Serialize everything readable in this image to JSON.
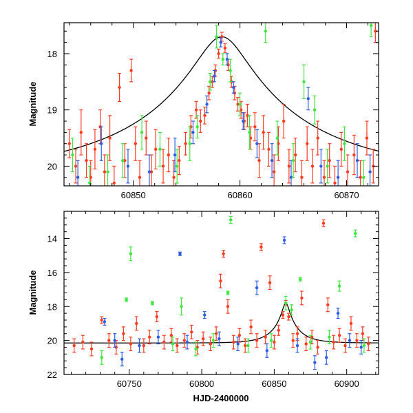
{
  "chart_data": [
    {
      "type": "scatter",
      "panel": "top",
      "xlabel": "",
      "ylabel": "Magnitude",
      "xlim": [
        60843.5,
        60873
      ],
      "ylim": [
        20.35,
        17.45
      ],
      "y_inverted": true,
      "xticks": [
        60850,
        60860,
        60870
      ],
      "yticks": [
        18,
        19,
        20
      ],
      "grid": false,
      "series": [
        {
          "color": "#ff3b1f",
          "points": [
            [
              60844.0,
              19.6,
              0.25
            ],
            [
              60844.6,
              20.0,
              0.3
            ],
            [
              60845.1,
              19.4,
              0.4
            ],
            [
              60845.6,
              19.9,
              0.3
            ],
            [
              60846.0,
              20.2,
              0.3
            ],
            [
              60846.4,
              19.7,
              0.35
            ],
            [
              60846.9,
              19.3,
              0.3
            ],
            [
              60847.3,
              20.1,
              0.3
            ],
            [
              60847.8,
              19.5,
              0.4
            ],
            [
              60848.2,
              20.3,
              0.3
            ],
            [
              60848.7,
              18.6,
              0.25
            ],
            [
              60849.2,
              19.9,
              0.3
            ],
            [
              60849.8,
              18.3,
              0.2
            ],
            [
              60850.2,
              19.6,
              0.3
            ],
            [
              60850.6,
              20.2,
              0.3
            ],
            [
              60851.2,
              19.5,
              0.3
            ],
            [
              60851.7,
              20.1,
              0.3
            ],
            [
              60852.1,
              19.7,
              0.35
            ],
            [
              60852.8,
              20.0,
              0.3
            ],
            [
              60853.3,
              19.8,
              0.3
            ],
            [
              60853.8,
              20.2,
              0.3
            ],
            [
              60854.3,
              19.9,
              0.25
            ],
            [
              60854.9,
              19.6,
              0.2
            ],
            [
              60855.4,
              19.3,
              0.2
            ],
            [
              60855.9,
              19.0,
              0.15
            ],
            [
              60856.3,
              19.2,
              0.2
            ],
            [
              60856.7,
              19.1,
              0.15
            ],
            [
              60857.1,
              18.7,
              0.12
            ],
            [
              60857.4,
              18.5,
              0.1
            ],
            [
              60857.7,
              18.3,
              0.1
            ],
            [
              60858.0,
              18.0,
              0.08
            ],
            [
              60858.3,
              17.7,
              0.08
            ],
            [
              60858.6,
              17.9,
              0.08
            ],
            [
              60858.9,
              18.2,
              0.1
            ],
            [
              60859.2,
              18.5,
              0.1
            ],
            [
              60859.5,
              18.7,
              0.12
            ],
            [
              60859.8,
              18.9,
              0.12
            ],
            [
              60860.1,
              19.0,
              0.15
            ],
            [
              60860.4,
              19.2,
              0.15
            ],
            [
              60860.7,
              19.1,
              0.2
            ],
            [
              60861.0,
              19.5,
              0.2
            ],
            [
              60861.4,
              19.3,
              0.25
            ],
            [
              60861.8,
              19.9,
              0.3
            ],
            [
              60862.2,
              19.4,
              0.3
            ],
            [
              60862.7,
              19.7,
              0.3
            ],
            [
              60863.2,
              20.1,
              0.3
            ],
            [
              60863.6,
              19.6,
              0.3
            ],
            [
              60864.1,
              19.2,
              0.3
            ],
            [
              60864.6,
              20.0,
              0.3
            ],
            [
              60865.2,
              19.8,
              0.3
            ],
            [
              60865.8,
              20.2,
              0.3
            ],
            [
              60866.3,
              19.6,
              0.3
            ],
            [
              60866.8,
              20.0,
              0.3
            ],
            [
              60867.3,
              19.5,
              0.3
            ],
            [
              60867.9,
              20.2,
              0.3
            ],
            [
              60868.4,
              19.9,
              0.3
            ],
            [
              60868.9,
              20.3,
              0.3
            ],
            [
              60869.5,
              19.7,
              0.3
            ],
            [
              60870.1,
              20.1,
              0.3
            ],
            [
              60870.7,
              19.8,
              0.35
            ],
            [
              60871.3,
              20.2,
              0.3
            ],
            [
              60871.9,
              19.5,
              0.3
            ],
            [
              60872.5,
              20.0,
              0.3
            ],
            [
              60872.7,
              17.6,
              0.2
            ]
          ]
        },
        {
          "color": "#2a5ce8",
          "points": [
            [
              60844.8,
              20.2,
              0.3
            ],
            [
              60847.0,
              19.6,
              0.3
            ],
            [
              60849.5,
              20.0,
              0.3
            ],
            [
              60851.5,
              20.1,
              0.3
            ],
            [
              60853.9,
              19.8,
              0.3
            ],
            [
              60855.6,
              19.4,
              0.2
            ],
            [
              60856.9,
              18.9,
              0.15
            ],
            [
              60857.6,
              18.4,
              0.1
            ],
            [
              60858.2,
              17.8,
              0.08
            ],
            [
              60858.8,
              18.1,
              0.1
            ],
            [
              60859.4,
              18.6,
              0.1
            ],
            [
              60860.3,
              19.2,
              0.15
            ],
            [
              60861.6,
              19.6,
              0.25
            ],
            [
              60863.0,
              19.9,
              0.3
            ],
            [
              60864.8,
              20.2,
              0.3
            ],
            [
              60866.4,
              18.8,
              0.2
            ],
            [
              60867.6,
              20.0,
              0.3
            ],
            [
              60869.2,
              20.2,
              0.3
            ],
            [
              60871.0,
              19.9,
              0.3
            ],
            [
              60872.2,
              20.1,
              0.3
            ]
          ]
        },
        {
          "color": "#3de83d",
          "points": [
            [
              60844.3,
              19.8,
              0.3
            ],
            [
              60845.9,
              20.3,
              0.3
            ],
            [
              60847.6,
              20.1,
              0.3
            ],
            [
              60849.0,
              19.9,
              0.3
            ],
            [
              60850.8,
              19.4,
              0.3
            ],
            [
              60852.5,
              19.7,
              0.3
            ],
            [
              60854.1,
              20.0,
              0.3
            ],
            [
              60855.3,
              19.6,
              0.3
            ],
            [
              60856.0,
              19.3,
              0.2
            ],
            [
              60857.2,
              18.5,
              0.15
            ],
            [
              60857.8,
              17.7,
              0.2
            ],
            [
              60858.4,
              18.1,
              0.1
            ],
            [
              60859.1,
              18.3,
              0.2
            ],
            [
              60860.0,
              18.9,
              0.2
            ],
            [
              60860.9,
              19.4,
              0.3
            ],
            [
              60862.4,
              17.6,
              0.2
            ],
            [
              60863.5,
              19.5,
              0.3
            ],
            [
              60865.0,
              19.9,
              0.3
            ],
            [
              60866.0,
              18.5,
              0.3
            ],
            [
              60867.0,
              19.0,
              0.25
            ],
            [
              60868.2,
              20.0,
              0.3
            ],
            [
              60869.8,
              19.6,
              0.3
            ],
            [
              60871.6,
              20.2,
              0.3
            ],
            [
              60872.3,
              17.5,
              0.2
            ]
          ]
        }
      ],
      "model_curve": {
        "color": "#000000",
        "t0": 60858.3,
        "peak": 17.7,
        "base": 20.15
      }
    },
    {
      "type": "scatter",
      "panel": "bottom",
      "xlabel": "HJD-2400000",
      "ylabel": "Magnitude",
      "xlim": [
        60705,
        60922
      ],
      "ylim": [
        22,
        12.4
      ],
      "y_inverted": true,
      "xticks": [
        60750,
        60800,
        60850,
        60900
      ],
      "yticks": [
        14,
        16,
        18,
        20,
        22
      ],
      "grid": false,
      "series": [
        {
          "color": "#ff3b1f",
          "points": [
            [
              60712,
              20.3,
              0.4
            ],
            [
              60718,
              20.1,
              0.4
            ],
            [
              60724,
              20.5,
              0.4
            ],
            [
              60731,
              18.8,
              0.2
            ],
            [
              60736,
              20.0,
              0.4
            ],
            [
              60741,
              20.4,
              0.4
            ],
            [
              60746,
              19.6,
              0.4
            ],
            [
              60751,
              20.2,
              0.4
            ],
            [
              60755,
              19.0,
              0.4
            ],
            [
              60760,
              20.3,
              0.4
            ],
            [
              60764,
              19.8,
              0.4
            ],
            [
              60769,
              18.6,
              0.3
            ],
            [
              60774,
              20.1,
              0.4
            ],
            [
              60779,
              19.7,
              0.4
            ],
            [
              60783,
              20.3,
              0.4
            ],
            [
              60788,
              20.0,
              0.4
            ],
            [
              60793,
              19.5,
              0.4
            ],
            [
              60797,
              20.4,
              0.4
            ],
            [
              60801,
              19.9,
              0.4
            ],
            [
              60806,
              20.2,
              0.4
            ],
            [
              60810,
              19.6,
              0.4
            ],
            [
              60813,
              16.5,
              0.4
            ],
            [
              60815,
              14.9,
              0.2
            ],
            [
              60818,
              18.0,
              0.4
            ],
            [
              60822,
              20.1,
              0.4
            ],
            [
              60826,
              19.7,
              0.4
            ],
            [
              60830,
              20.3,
              0.4
            ],
            [
              60834,
              19.2,
              0.4
            ],
            [
              60838,
              20.0,
              0.4
            ],
            [
              60841,
              14.5,
              0.2
            ],
            [
              60844,
              19.8,
              0.4
            ],
            [
              60847,
              16.6,
              0.4
            ],
            [
              60850,
              20.1,
              0.4
            ],
            [
              60853,
              19.4,
              0.3
            ],
            [
              60856,
              18.5,
              0.2
            ],
            [
              60858,
              17.8,
              0.15
            ],
            [
              60860,
              18.6,
              0.2
            ],
            [
              60863,
              20.0,
              0.4
            ],
            [
              60866,
              19.6,
              0.4
            ],
            [
              60869,
              17.5,
              0.4
            ],
            [
              60872,
              20.2,
              0.4
            ],
            [
              60876,
              19.8,
              0.4
            ],
            [
              60880,
              20.4,
              0.4
            ],
            [
              60884,
              13.1,
              0.2
            ],
            [
              60887,
              17.9,
              0.4
            ],
            [
              60891,
              20.1,
              0.4
            ],
            [
              60895,
              19.7,
              0.4
            ],
            [
              60899,
              20.3,
              0.4
            ],
            [
              60903,
              19.0,
              0.4
            ],
            [
              60907,
              20.0,
              0.4
            ],
            [
              60911,
              19.6,
              0.4
            ],
            [
              60915,
              20.2,
              0.4
            ]
          ]
        },
        {
          "color": "#2a5ce8",
          "points": [
            [
              60733,
              18.9,
              0.2
            ],
            [
              60740,
              20.0,
              0.4
            ],
            [
              60745,
              21.1,
              0.4
            ],
            [
              60757,
              20.3,
              0.4
            ],
            [
              60770,
              19.8,
              0.4
            ],
            [
              60785,
              14.9,
              0.1
            ],
            [
              60790,
              20.1,
              0.4
            ],
            [
              60802,
              18.5,
              0.2
            ],
            [
              60812,
              19.9,
              0.4
            ],
            [
              60825,
              20.2,
              0.4
            ],
            [
              60838,
              16.9,
              0.4
            ],
            [
              60845,
              20.6,
              0.4
            ],
            [
              60857,
              14.1,
              0.2
            ],
            [
              60866,
              20.3,
              0.4
            ],
            [
              60878,
              21.3,
              0.4
            ],
            [
              60886,
              21.0,
              0.4
            ],
            [
              60894,
              18.4,
              0.3
            ],
            [
              60902,
              20.0,
              0.4
            ],
            [
              60910,
              20.4,
              0.4
            ]
          ]
        },
        {
          "color": "#3de83d",
          "points": [
            [
              60731,
              21.0,
              0.4
            ],
            [
              60748,
              17.6,
              0.1
            ],
            [
              60751,
              14.9,
              0.4
            ],
            [
              60766,
              17.8,
              0.1
            ],
            [
              60780,
              20.2,
              0.4
            ],
            [
              60786,
              18.0,
              0.5
            ],
            [
              60796,
              20.5,
              0.4
            ],
            [
              60808,
              20.0,
              0.4
            ],
            [
              60818,
              17.2,
              0.1
            ],
            [
              60820,
              12.9,
              0.2
            ],
            [
              60832,
              20.3,
              0.4
            ],
            [
              60848,
              20.0,
              0.4
            ],
            [
              60858,
              17.8,
              0.4
            ],
            [
              60862,
              18.2,
              0.3
            ],
            [
              60868,
              16.4,
              0.1
            ],
            [
              60875,
              20.1,
              0.4
            ],
            [
              60888,
              19.8,
              0.4
            ],
            [
              60895,
              16.8,
              0.3
            ],
            [
              60906,
              13.7,
              0.2
            ],
            [
              60912,
              20.3,
              0.4
            ]
          ]
        }
      ],
      "model_curve": {
        "color": "#000000",
        "t0": 60858,
        "peak": 17.8,
        "base": 20.15
      }
    }
  ]
}
